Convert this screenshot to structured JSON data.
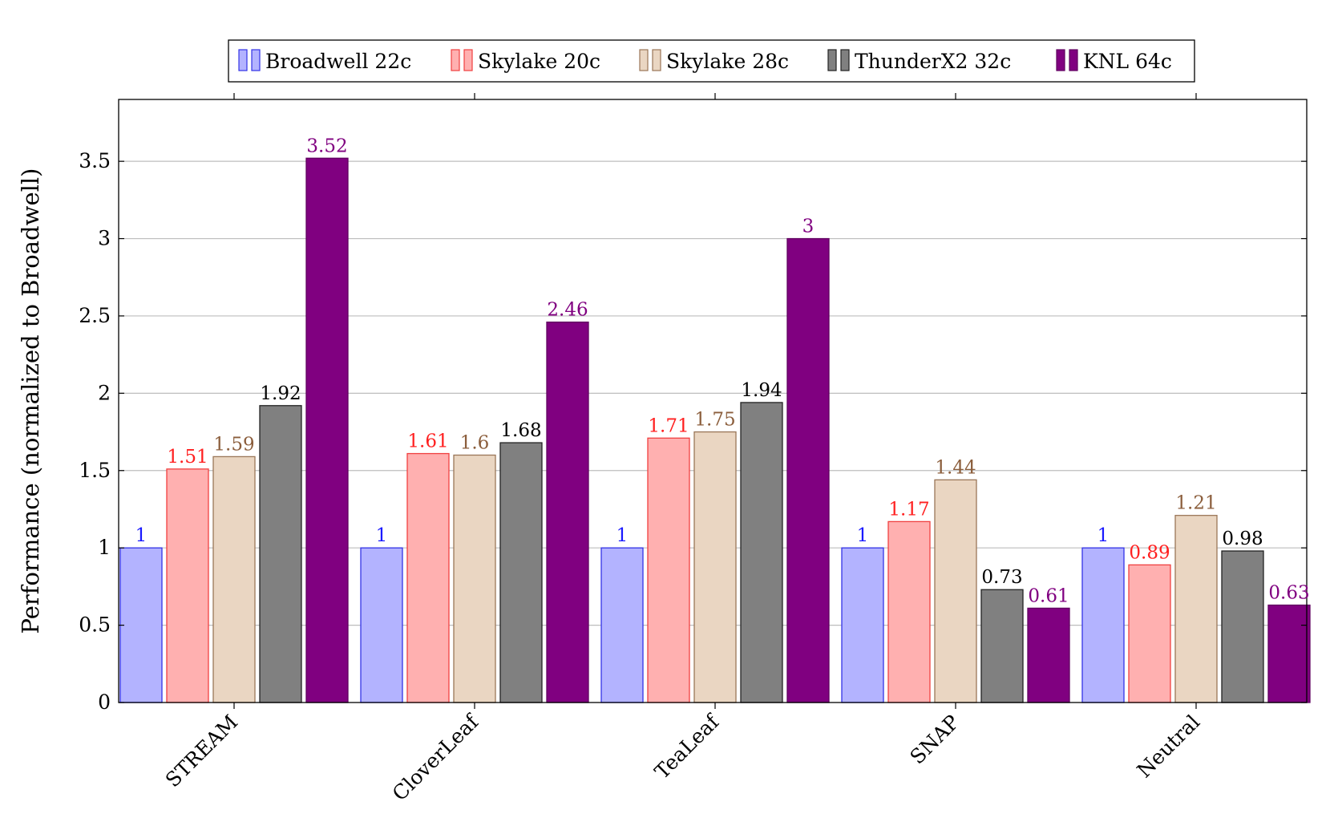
{
  "chart_data": {
    "type": "bar",
    "title": "",
    "xlabel": "",
    "ylabel": "Performance (normalized to Broadwell)",
    "ylim": [
      0,
      3.9
    ],
    "yticks": [
      0,
      0.5,
      1,
      1.5,
      2,
      2.5,
      3,
      3.5
    ],
    "ytick_labels": [
      "0",
      "0.5",
      "1",
      "1.5",
      "2",
      "2.5",
      "3",
      "3.5"
    ],
    "grid": true,
    "legend_position": "top-center",
    "categories": [
      "STREAM",
      "CloverLeaf",
      "TeaLeaf",
      "SNAP",
      "Neutral"
    ],
    "series": [
      {
        "name": "Broadwell 22c",
        "values": [
          1,
          1,
          1,
          1,
          1
        ],
        "labels": [
          "1",
          "1",
          "1",
          "1",
          "1"
        ],
        "fill": "#b3b3ff",
        "stroke": "#3333e6",
        "label_color": "#1a1aff"
      },
      {
        "name": "Skylake 20c",
        "values": [
          1.51,
          1.61,
          1.71,
          1.17,
          0.89
        ],
        "labels": [
          "1.51",
          "1.61",
          "1.71",
          "1.17",
          "0.89"
        ],
        "fill": "#ffb0b0",
        "stroke": "#f04040",
        "label_color": "#ff2020"
      },
      {
        "name": "Skylake 28c",
        "values": [
          1.59,
          1.6,
          1.75,
          1.44,
          1.21
        ],
        "labels": [
          "1.59",
          "1.6",
          "1.75",
          "1.44",
          "1.21"
        ],
        "fill": "#ead6c2",
        "stroke": "#9a7658",
        "label_color": "#8b5e3c"
      },
      {
        "name": "ThunderX2 32c",
        "values": [
          1.92,
          1.68,
          1.94,
          0.73,
          0.98
        ],
        "labels": [
          "1.92",
          "1.68",
          "1.94",
          "0.73",
          "0.98"
        ],
        "fill": "#808080",
        "stroke": "#222222",
        "label_color": "#000000"
      },
      {
        "name": "KNL 64c",
        "values": [
          3.52,
          2.46,
          3,
          0.61,
          0.63
        ],
        "labels": [
          "3.52",
          "2.46",
          "3",
          "0.61",
          "0.63"
        ],
        "fill": "#800080",
        "stroke": "#600060",
        "label_color": "#800080"
      }
    ]
  }
}
